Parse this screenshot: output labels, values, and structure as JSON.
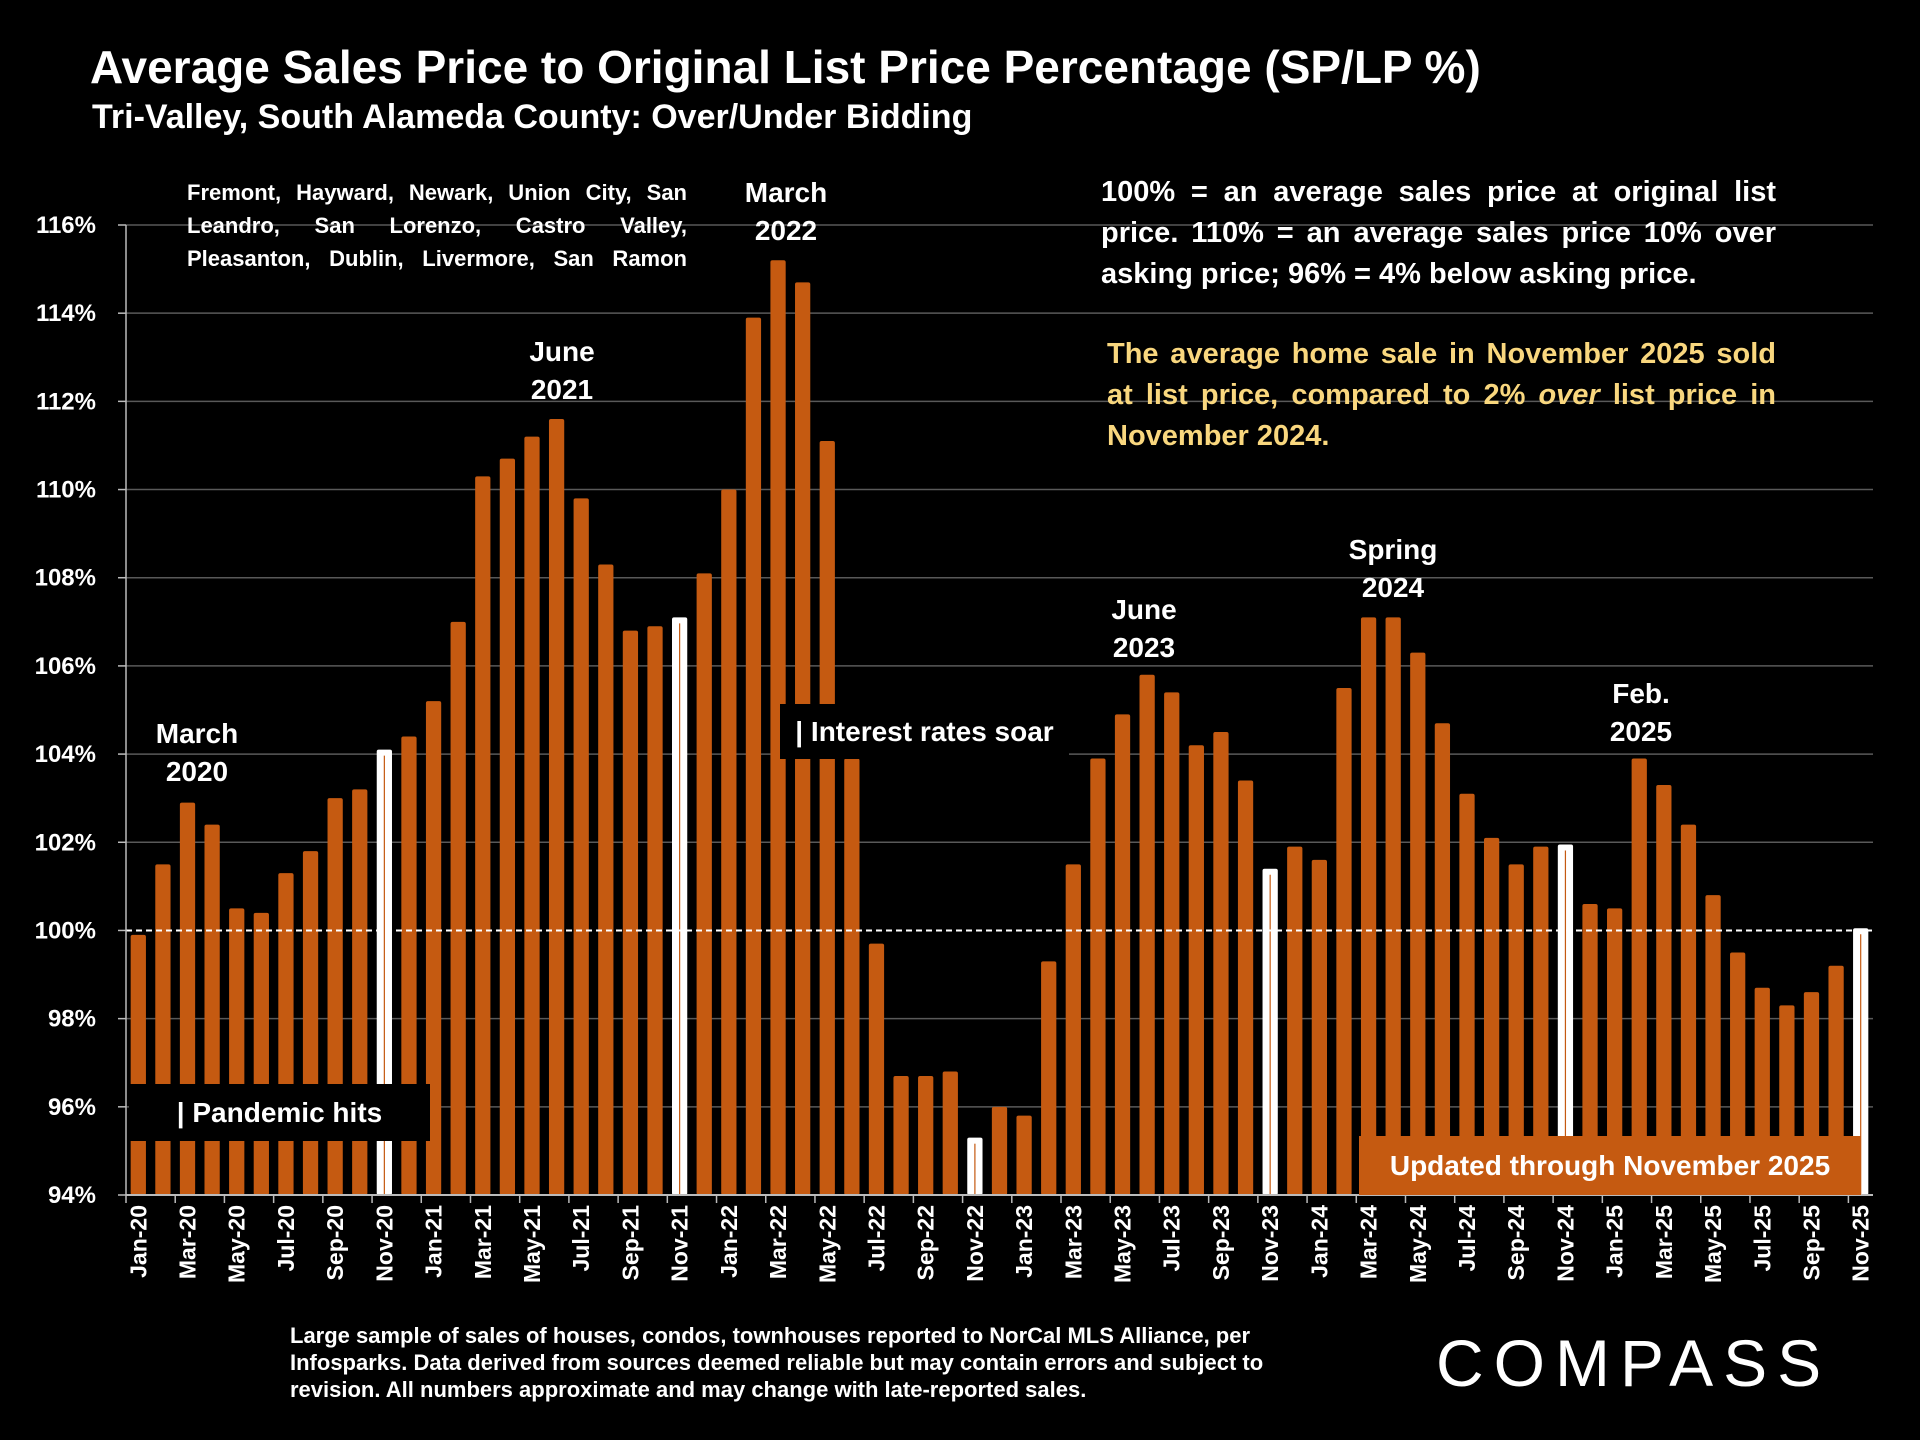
{
  "chart_data": {
    "type": "bar",
    "title": "Average Sales Price to Original List Price Percentage (SP/LP %)",
    "subtitle": "Tri-Valley, South Alameda County:  Over/Under Bidding",
    "xlabel": "",
    "ylabel": "",
    "ylim": [
      94,
      116
    ],
    "yticks": [
      "94%",
      "96%",
      "98%",
      "100%",
      "102%",
      "104%",
      "106%",
      "108%",
      "110%",
      "112%",
      "114%",
      "116%"
    ],
    "ytick_values": [
      94,
      96,
      98,
      100,
      102,
      104,
      106,
      108,
      110,
      112,
      114,
      116
    ],
    "grid": true,
    "reference_line": 100,
    "categories": [
      "Jan-20",
      "Feb-20",
      "Mar-20",
      "Apr-20",
      "May-20",
      "Jun-20",
      "Jul-20",
      "Aug-20",
      "Sep-20",
      "Oct-20",
      "Nov-20",
      "Dec-20",
      "Jan-21",
      "Feb-21",
      "Mar-21",
      "Apr-21",
      "May-21",
      "Jun-21",
      "Jul-21",
      "Aug-21",
      "Sep-21",
      "Oct-21",
      "Nov-21",
      "Dec-21",
      "Jan-22",
      "Feb-22",
      "Mar-22",
      "Apr-22",
      "May-22",
      "Jun-22",
      "Jul-22",
      "Aug-22",
      "Sep-22",
      "Oct-22",
      "Nov-22",
      "Dec-22",
      "Jan-23",
      "Feb-23",
      "Mar-23",
      "Apr-23",
      "May-23",
      "Jun-23",
      "Jul-23",
      "Aug-23",
      "Sep-23",
      "Oct-23",
      "Nov-23",
      "Dec-23",
      "Jan-24",
      "Feb-24",
      "Mar-24",
      "Apr-24",
      "May-24",
      "Jun-24",
      "Jul-24",
      "Aug-24",
      "Sep-24",
      "Oct-24",
      "Nov-24",
      "Dec-24",
      "Jan-25",
      "Feb-25",
      "Mar-25",
      "Apr-25",
      "May-25",
      "Jun-25",
      "Jul-25",
      "Aug-25",
      "Sep-25",
      "Oct-25",
      "Nov-25"
    ],
    "values": [
      99.9,
      101.5,
      102.9,
      102.4,
      100.5,
      100.4,
      101.3,
      101.8,
      103.0,
      103.2,
      104.1,
      104.4,
      105.2,
      107.0,
      110.3,
      110.7,
      111.2,
      111.6,
      109.8,
      108.3,
      106.8,
      106.9,
      107.1,
      108.1,
      110.0,
      113.9,
      115.2,
      114.7,
      111.1,
      103.9,
      99.7,
      96.7,
      96.7,
      96.8,
      95.3,
      96.0,
      95.8,
      99.3,
      101.5,
      103.9,
      104.9,
      105.8,
      105.4,
      104.2,
      104.5,
      103.4,
      101.4,
      101.9,
      101.6,
      105.5,
      107.1,
      107.1,
      106.3,
      104.7,
      103.1,
      102.1,
      101.5,
      101.9,
      101.95,
      100.6,
      100.5,
      103.9,
      103.3,
      102.4,
      100.8,
      99.5,
      98.7,
      98.3,
      98.6,
      99.2,
      100.05
    ],
    "highlighted": [
      "Nov-20",
      "Nov-21",
      "Nov-22",
      "Nov-23",
      "Nov-24",
      "Nov-25"
    ],
    "colors": {
      "bar": "#c55a11",
      "highlight": "#ffffff",
      "grid": "#595959",
      "yellow_text": "#f9d77e"
    },
    "annotations": [
      {
        "text": "March\n2020"
      },
      {
        "text": "June\n2021"
      },
      {
        "text": "March\n2022"
      },
      {
        "text": "June\n2023"
      },
      {
        "text": "Spring\n2024"
      },
      {
        "text": "Feb.\n2025"
      }
    ],
    "events": {
      "pandemic": "| Pandemic hits",
      "rates": "| Interest rates soar"
    }
  },
  "cities": "Fremont, Hayward, Newark, Union City, San Leandro, San Lorenzo, Castro Valley, Pleasanton, Dublin, Livermore, San Ramon",
  "note": "100% = an average sales price at original list price. 110% = an average sales price 10% over asking price; 96% = 4% below asking price.",
  "note2_a": "The average home sale in November 2025 sold at list price, compared to 2% ",
  "note2_em": "over",
  "note2_b": " list price in November 2024.",
  "updated": "Updated through November 2025",
  "footnote": "Large sample of sales of houses, condos, townhouses reported to NorCal MLS Alliance, per Infosparks. Data derived from sources deemed reliable but may contain errors and subject to revision. All numbers approximate and may change with late-reported sales.",
  "logo": "COMPASS"
}
